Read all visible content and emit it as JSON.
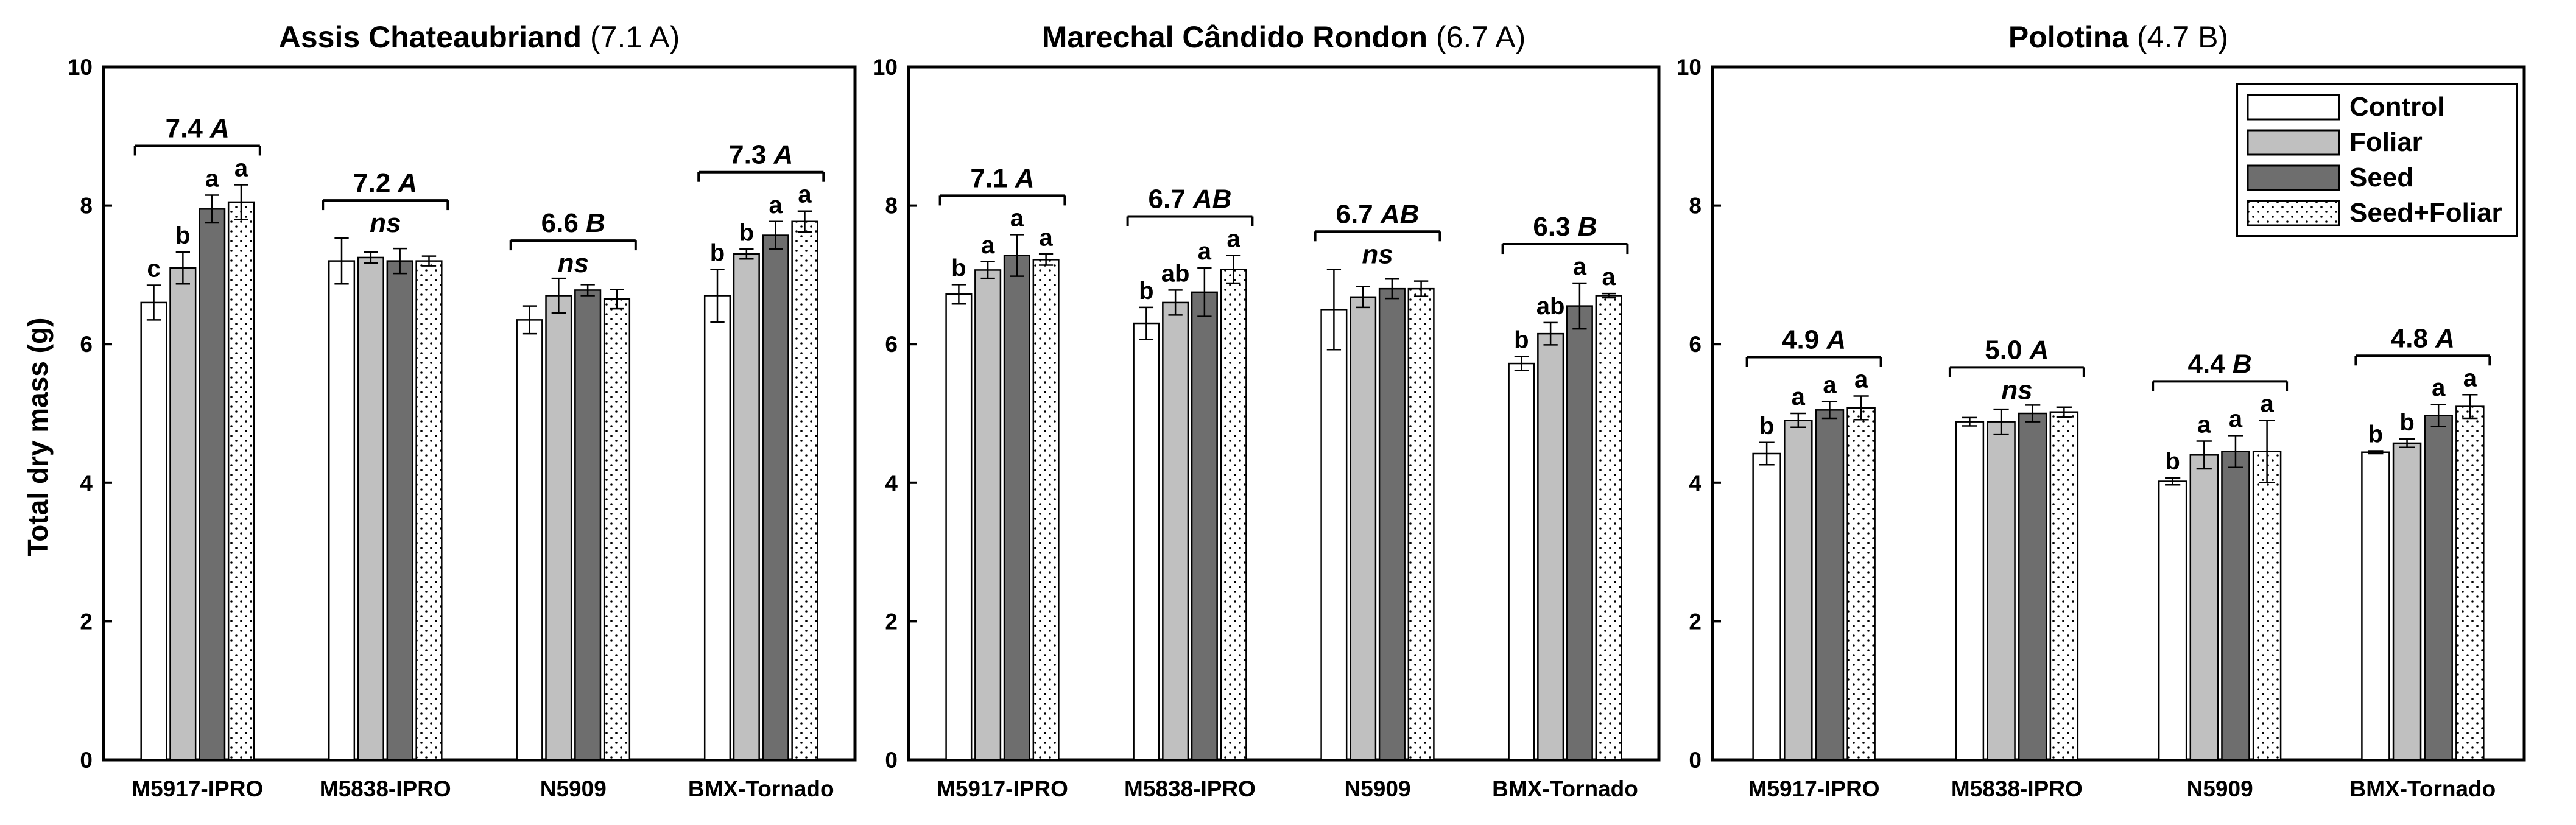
{
  "y_axis_label": "Total dry mass (g)",
  "legend": {
    "position": "top-right of third panel",
    "entries": [
      {
        "name": "Control",
        "fill": "#ffffff",
        "pattern": "none"
      },
      {
        "name": "Foliar",
        "fill": "#c0c0c0",
        "pattern": "none"
      },
      {
        "name": "Seed",
        "fill": "#6e6e6e",
        "pattern": "none"
      },
      {
        "name": "Seed+Foliar",
        "fill": "#ffffff",
        "pattern": "dots"
      }
    ]
  },
  "chart_data": [
    {
      "type": "bar",
      "title": "Assis Chateaubriand",
      "title_note": "(7.1 A)",
      "xlabel": "",
      "ylabel": "Total dry mass (g)",
      "ylim": [
        0,
        10
      ],
      "yticks": [
        "0",
        "2",
        "4",
        "6",
        "8",
        "10"
      ],
      "categories": [
        "M5917-IPRO",
        "M5838-IPRO",
        "N5909",
        "BMX-Tornado"
      ],
      "series": [
        {
          "name": "Control",
          "values": [
            6.6,
            7.2,
            6.35,
            6.7
          ],
          "errors": [
            0.25,
            0.33,
            0.2,
            0.38
          ]
        },
        {
          "name": "Foliar",
          "values": [
            7.1,
            7.25,
            6.7,
            7.3
          ],
          "errors": [
            0.23,
            0.08,
            0.25,
            0.07
          ]
        },
        {
          "name": "Seed",
          "values": [
            7.95,
            7.2,
            6.78,
            7.57
          ],
          "errors": [
            0.2,
            0.18,
            0.08,
            0.2
          ]
        },
        {
          "name": "Seed+Foliar",
          "values": [
            8.05,
            7.2,
            6.65,
            7.77
          ],
          "errors": [
            0.25,
            0.07,
            0.14,
            0.15
          ]
        }
      ],
      "bar_letters": [
        [
          "c",
          "b",
          "a",
          "a"
        ],
        [
          "",
          "",
          "",
          ""
        ],
        [
          "",
          "",
          "",
          ""
        ],
        [
          "b",
          "b",
          "a",
          "a"
        ]
      ],
      "group_labels": [
        {
          "mean": "7.4",
          "letter": "A",
          "sub": ""
        },
        {
          "mean": "7.2",
          "letter": "A",
          "sub": "ns"
        },
        {
          "mean": "6.6",
          "letter": "B",
          "sub": "ns"
        },
        {
          "mean": "7.3",
          "letter": "A",
          "sub": ""
        }
      ]
    },
    {
      "type": "bar",
      "title": "Marechal Cândido Rondon",
      "title_note": "(6.7 A)",
      "xlabel": "",
      "ylabel": "",
      "ylim": [
        0,
        10
      ],
      "yticks": [
        "0",
        "2",
        "4",
        "6",
        "8",
        "10"
      ],
      "categories": [
        "M5917-IPRO",
        "M5838-IPRO",
        "N5909",
        "BMX-Tornado"
      ],
      "series": [
        {
          "name": "Control",
          "values": [
            6.72,
            6.3,
            6.5,
            5.72
          ],
          "errors": [
            0.14,
            0.23,
            0.58,
            0.1
          ]
        },
        {
          "name": "Foliar",
          "values": [
            7.07,
            6.6,
            6.68,
            6.15
          ],
          "errors": [
            0.12,
            0.18,
            0.15,
            0.16
          ]
        },
        {
          "name": "Seed",
          "values": [
            7.28,
            6.75,
            6.8,
            6.55
          ],
          "errors": [
            0.3,
            0.35,
            0.14,
            0.33
          ]
        },
        {
          "name": "Seed+Foliar",
          "values": [
            7.22,
            7.08,
            6.8,
            6.7
          ],
          "errors": [
            0.08,
            0.2,
            0.11,
            0.03
          ]
        }
      ],
      "bar_letters": [
        [
          "b",
          "a",
          "a",
          "a"
        ],
        [
          "b",
          "ab",
          "a",
          "a"
        ],
        [
          "",
          "",
          "",
          ""
        ],
        [
          "b",
          "ab",
          "a",
          "a"
        ]
      ],
      "group_labels": [
        {
          "mean": "7.1",
          "letter": "A",
          "sub": ""
        },
        {
          "mean": "6.7",
          "letter": "AB",
          "sub": ""
        },
        {
          "mean": "6.7",
          "letter": "AB",
          "sub": "ns"
        },
        {
          "mean": "6.3",
          "letter": "B",
          "sub": ""
        }
      ]
    },
    {
      "type": "bar",
      "title": "Polotina",
      "title_note": "(4.7 B)",
      "xlabel": "",
      "ylabel": "",
      "ylim": [
        0,
        10
      ],
      "yticks": [
        "0",
        "2",
        "4",
        "6",
        "8",
        "10"
      ],
      "categories": [
        "M5917-IPRO",
        "M5838-IPRO",
        "N5909",
        "BMX-Tornado"
      ],
      "series": [
        {
          "name": "Control",
          "values": [
            4.42,
            4.88,
            4.02,
            4.44
          ],
          "errors": [
            0.16,
            0.06,
            0.05,
            0.02
          ]
        },
        {
          "name": "Foliar",
          "values": [
            4.9,
            4.88,
            4.4,
            4.57
          ],
          "errors": [
            0.1,
            0.18,
            0.2,
            0.06
          ]
        },
        {
          "name": "Seed",
          "values": [
            5.05,
            5.0,
            4.45,
            4.97
          ],
          "errors": [
            0.12,
            0.12,
            0.23,
            0.16
          ]
        },
        {
          "name": "Seed+Foliar",
          "values": [
            5.08,
            5.02,
            4.45,
            5.1
          ],
          "errors": [
            0.17,
            0.07,
            0.45,
            0.17
          ]
        }
      ],
      "bar_letters": [
        [
          "b",
          "a",
          "a",
          "a"
        ],
        [
          "",
          "",
          "",
          ""
        ],
        [
          "b",
          "a",
          "a",
          "a"
        ],
        [
          "b",
          "b",
          "a",
          "a"
        ]
      ],
      "group_labels": [
        {
          "mean": "4.9",
          "letter": "A",
          "sub": ""
        },
        {
          "mean": "5.0",
          "letter": "A",
          "sub": "ns"
        },
        {
          "mean": "4.4",
          "letter": "B",
          "sub": ""
        },
        {
          "mean": "4.8",
          "letter": "A",
          "sub": ""
        }
      ]
    }
  ]
}
